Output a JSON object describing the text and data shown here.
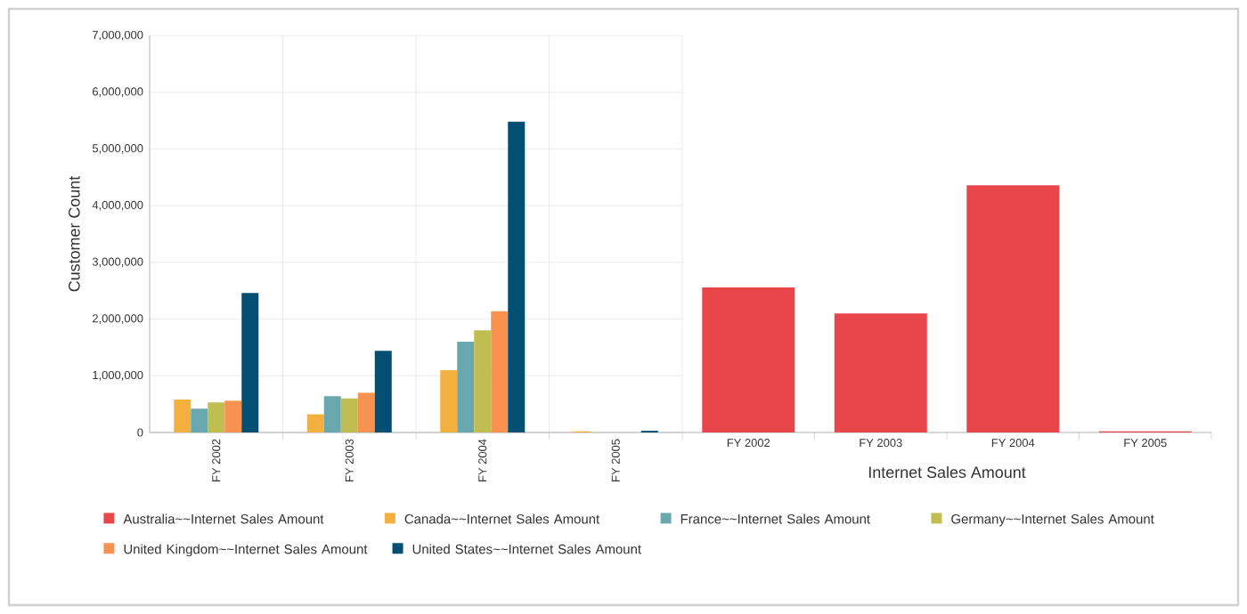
{
  "chart_data": [
    {
      "type": "bar",
      "ylabel": "Customer Count",
      "categories": [
        "FY 2002",
        "FY 2003",
        "FY 2004",
        "FY 2005"
      ],
      "series": [
        {
          "name": "Canada~~Internet Sales Amount",
          "color": "#f4b03f",
          "values": [
            580000,
            320000,
            1100000,
            20000
          ]
        },
        {
          "name": "France~~Internet Sales Amount",
          "color": "#6aa8b0",
          "values": [
            420000,
            640000,
            1600000,
            null
          ]
        },
        {
          "name": "Germany~~Internet Sales Amount",
          "color": "#c0be50",
          "values": [
            530000,
            600000,
            1800000,
            null
          ]
        },
        {
          "name": "United Kingdom~~Internet Sales Amount",
          "color": "#f79250",
          "values": [
            560000,
            700000,
            2140000,
            null
          ]
        },
        {
          "name": "United States~~Internet Sales Amount",
          "color": "#034f74",
          "values": [
            2460000,
            1440000,
            5480000,
            30000
          ]
        }
      ],
      "ylim": [
        0,
        7000000
      ],
      "yticks": [
        0,
        {
          "value": 1000000,
          "label": "1,000,000"
        },
        {
          "value": 2000000,
          "label": "2,000,000"
        },
        {
          "value": 3000000,
          "label": "3,000,000"
        },
        {
          "value": 4000000,
          "label": "4,000,000"
        },
        {
          "value": 5000000,
          "label": "5,000,000"
        },
        {
          "value": 6000000,
          "label": "6,000,000"
        },
        {
          "value": 7000000,
          "label": "7,000,000"
        }
      ],
      "grid": true,
      "legend": "bottom"
    },
    {
      "type": "bar",
      "xlabel": "Internet Sales Amount",
      "categories": [
        "FY 2002",
        "FY 2003",
        "FY 2004",
        "FY 2005"
      ],
      "series": [
        {
          "name": "Australia~~Internet Sales Amount",
          "color": "#e8464a",
          "values": [
            2560000,
            2100000,
            4360000,
            20000
          ]
        }
      ],
      "ylim": [
        0,
        7000000
      ],
      "yticks": [
        0,
        1000000,
        2000000,
        3000000,
        4000000,
        5000000,
        6000000,
        7000000
      ],
      "tick_labels": "x",
      "grid": "y",
      "legend": "bottom"
    }
  ]
}
